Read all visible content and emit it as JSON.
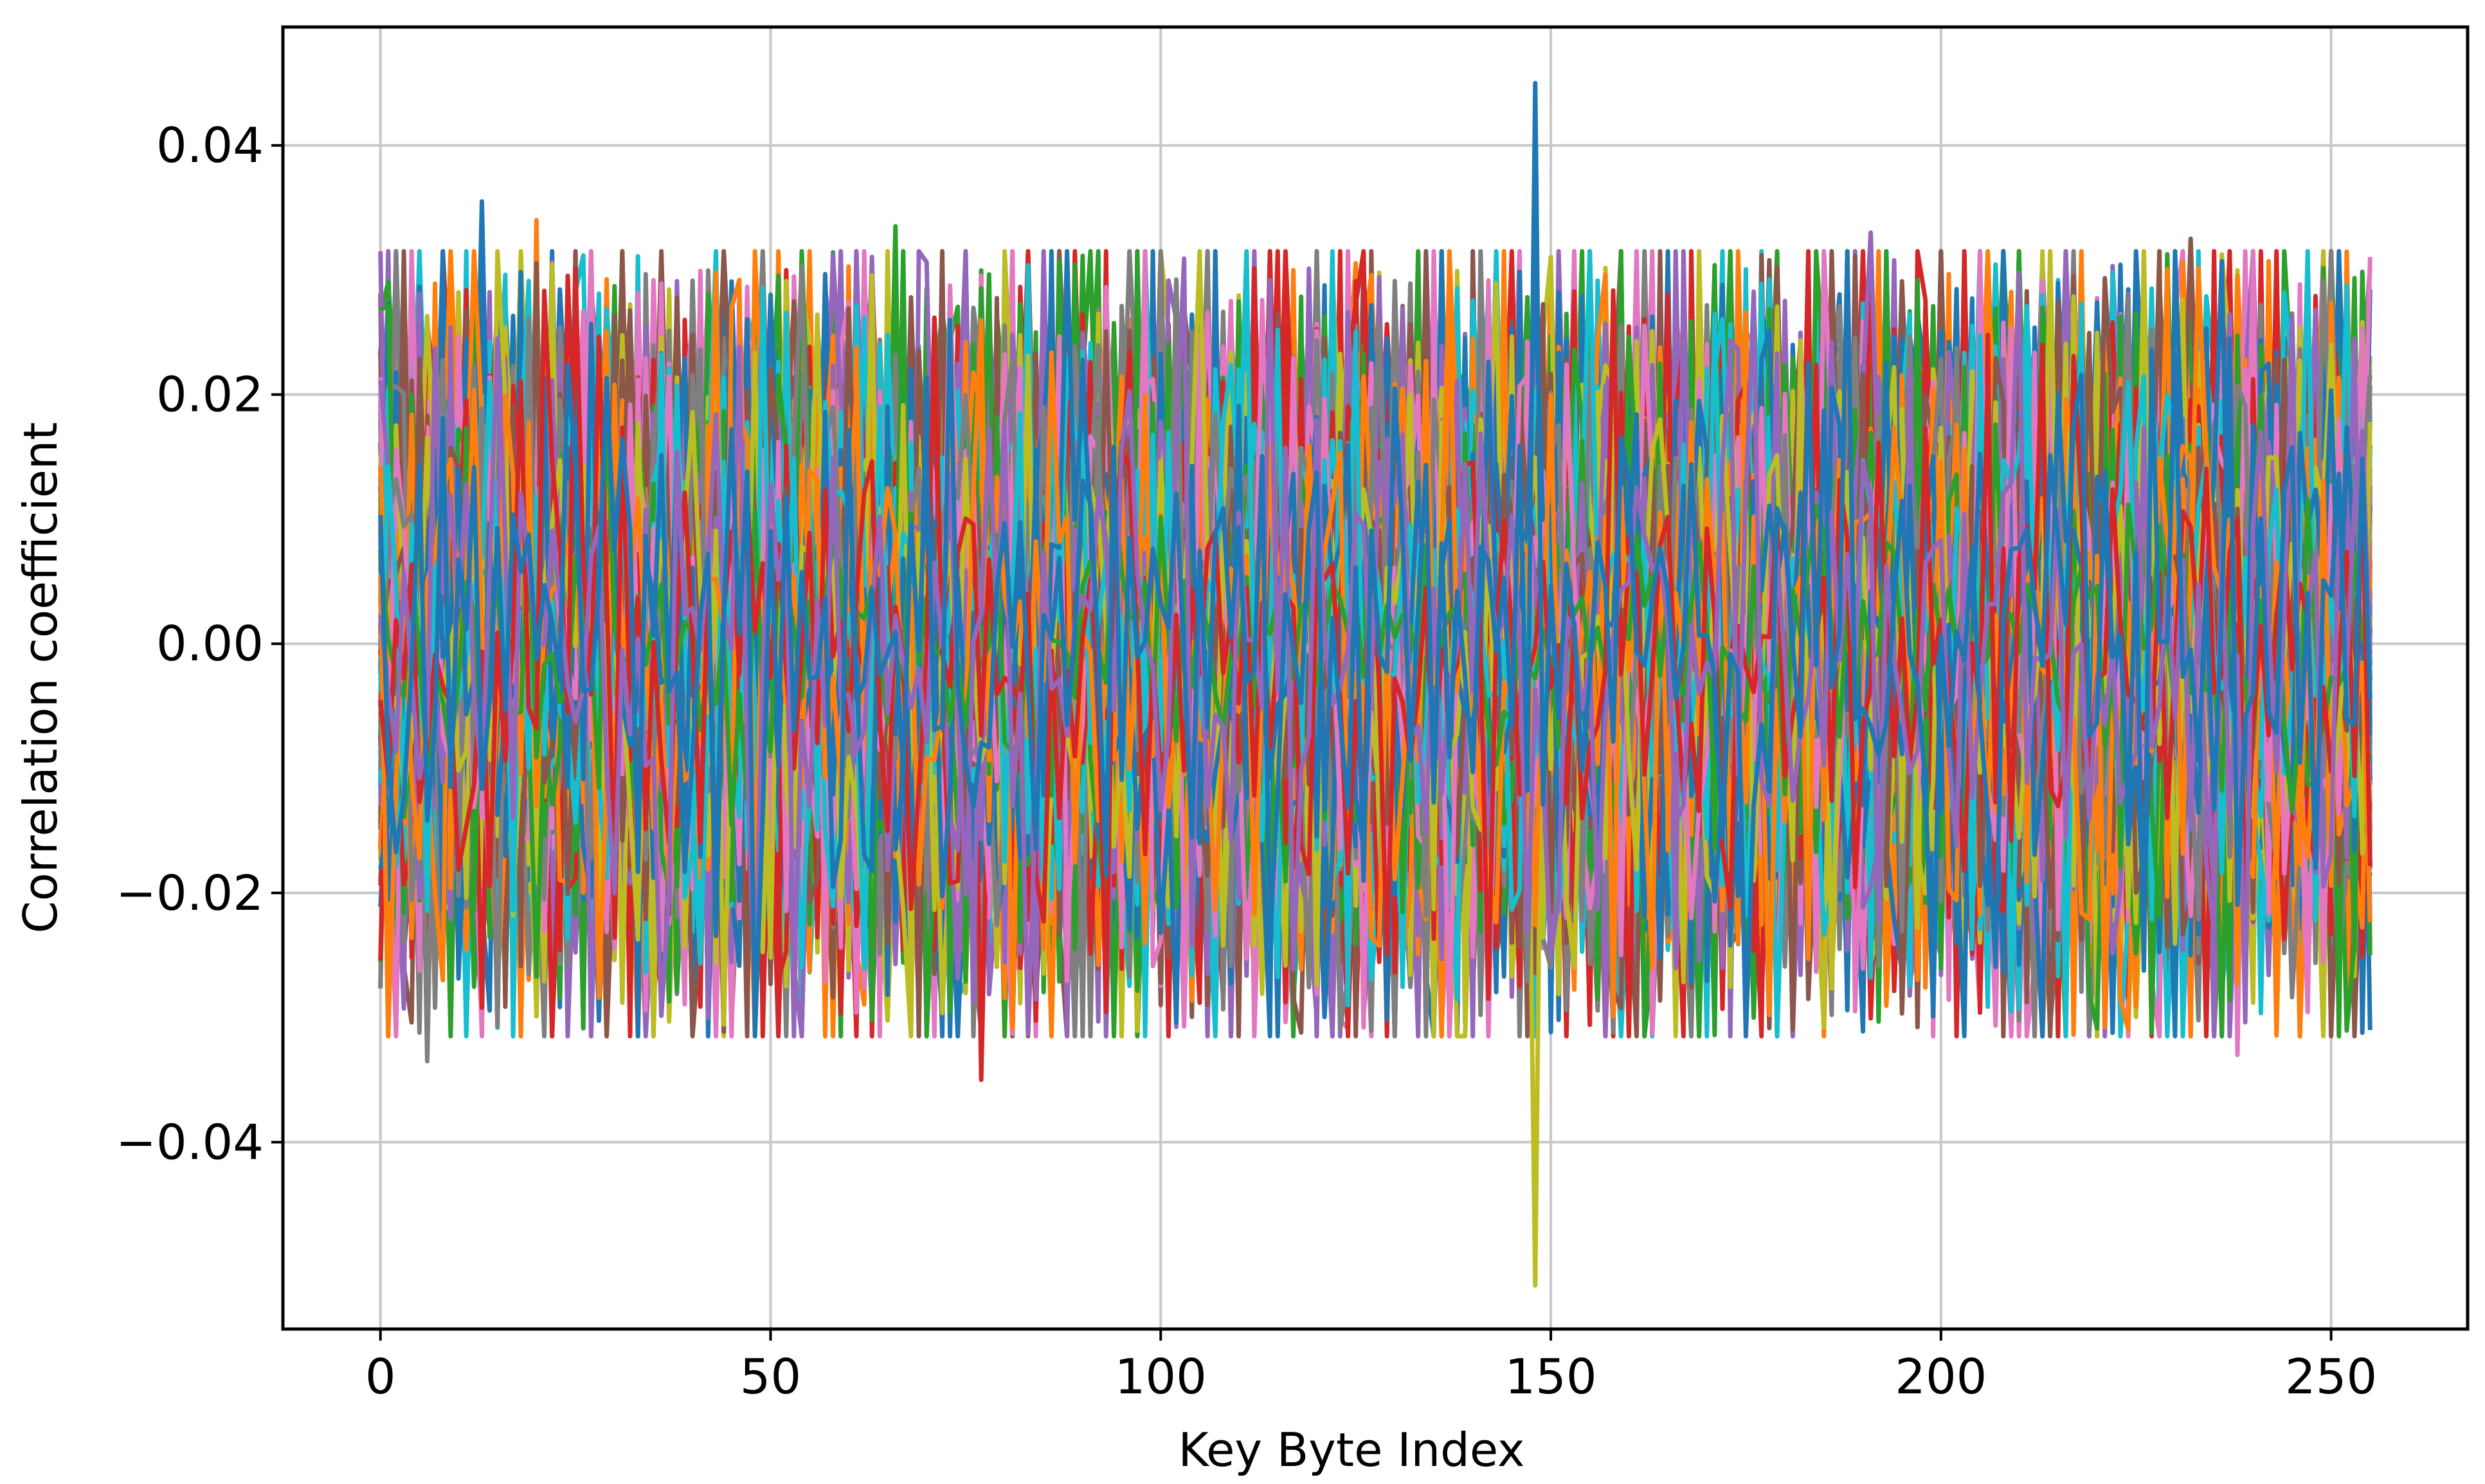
{
  "chart_data": {
    "type": "line",
    "title": "",
    "xlabel": "Key Byte Index",
    "ylabel": "Correlation coefficient",
    "xlim": [
      -12.5,
      267.5
    ],
    "ylim": [
      -0.055,
      0.0495
    ],
    "x_range": [
      0,
      255
    ],
    "x_ticks": [
      0,
      50,
      100,
      150,
      200,
      250
    ],
    "x_tick_labels": [
      "0",
      "50",
      "100",
      "150",
      "200",
      "250"
    ],
    "y_ticks": [
      0.04,
      0.02,
      0.0,
      -0.02,
      -0.04
    ],
    "y_tick_labels": [
      "0.04",
      "0.02",
      "0.00",
      "−0.02",
      "−0.04"
    ],
    "grid": true,
    "legend": "none",
    "series_count": 10,
    "series_colors": [
      "#1f77b4",
      "#ff7f0e",
      "#2ca02c",
      "#d62728",
      "#9467bd",
      "#8c564b",
      "#e377c2",
      "#7f7f7f",
      "#bcbd22",
      "#17becf"
    ],
    "noise_band": {
      "typical_min": -0.03,
      "typical_max": 0.03
    },
    "highlighted_traces": [
      {
        "color": "#1f77b4",
        "peak_x": 148,
        "peak_y": 0.045
      },
      {
        "color": "#bcbd22",
        "peak_x": 148,
        "peak_y": -0.0515
      }
    ],
    "notable_peaks": [
      {
        "x": 13,
        "y": 0.0355
      },
      {
        "x": 20,
        "y": 0.034
      },
      {
        "x": 66,
        "y": 0.0335
      },
      {
        "x": 77,
        "y": -0.035
      },
      {
        "x": 191,
        "y": 0.033
      },
      {
        "x": 232,
        "y": 0.0325
      },
      {
        "x": 238,
        "y": -0.033
      },
      {
        "x": 6,
        "y": -0.0335
      }
    ]
  }
}
